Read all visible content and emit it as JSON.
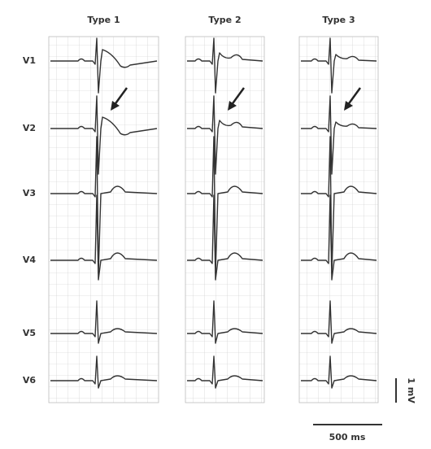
{
  "panels": [
    {
      "title": "Type 1"
    },
    {
      "title": "Type 2"
    },
    {
      "title": "Type 3"
    }
  ],
  "leads": [
    "V1",
    "V2",
    "V3",
    "V4",
    "V5",
    "V6"
  ],
  "scale": {
    "amplitude": "1 mV",
    "time": "500 ms"
  }
}
